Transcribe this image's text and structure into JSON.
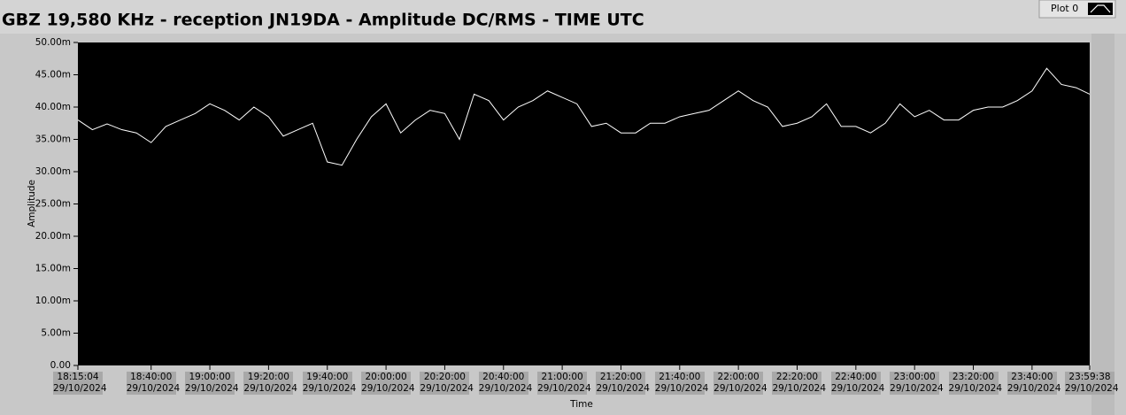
{
  "chart_data": {
    "type": "line",
    "title": "GBZ  19,580 KHz - reception JN19DA -  Amplitude DC/RMS   - TIME UTC",
    "xlabel": "Time",
    "ylabel": "Amplitude",
    "x": [
      "2024-10-29T18:15:04",
      "2024-10-29T18:20:00",
      "2024-10-29T18:25:00",
      "2024-10-29T18:30:00",
      "2024-10-29T18:35:00",
      "2024-10-29T18:40:00",
      "2024-10-29T18:45:00",
      "2024-10-29T18:50:00",
      "2024-10-29T18:55:00",
      "2024-10-29T19:00:00",
      "2024-10-29T19:05:00",
      "2024-10-29T19:10:00",
      "2024-10-29T19:15:00",
      "2024-10-29T19:20:00",
      "2024-10-29T19:25:00",
      "2024-10-29T19:30:00",
      "2024-10-29T19:35:00",
      "2024-10-29T19:40:00",
      "2024-10-29T19:45:00",
      "2024-10-29T19:50:00",
      "2024-10-29T19:55:00",
      "2024-10-29T20:00:00",
      "2024-10-29T20:05:00",
      "2024-10-29T20:10:00",
      "2024-10-29T20:15:00",
      "2024-10-29T20:20:00",
      "2024-10-29T20:25:00",
      "2024-10-29T20:30:00",
      "2024-10-29T20:35:00",
      "2024-10-29T20:40:00",
      "2024-10-29T20:45:00",
      "2024-10-29T20:50:00",
      "2024-10-29T20:55:00",
      "2024-10-29T21:00:00",
      "2024-10-29T21:05:00",
      "2024-10-29T21:10:00",
      "2024-10-29T21:15:00",
      "2024-10-29T21:20:00",
      "2024-10-29T21:25:00",
      "2024-10-29T21:30:00",
      "2024-10-29T21:35:00",
      "2024-10-29T21:40:00",
      "2024-10-29T21:45:00",
      "2024-10-29T21:50:00",
      "2024-10-29T21:55:00",
      "2024-10-29T22:00:00",
      "2024-10-29T22:05:00",
      "2024-10-29T22:10:00",
      "2024-10-29T22:15:00",
      "2024-10-29T22:20:00",
      "2024-10-29T22:25:00",
      "2024-10-29T22:30:00",
      "2024-10-29T22:35:00",
      "2024-10-29T22:40:00",
      "2024-10-29T22:45:00",
      "2024-10-29T22:50:00",
      "2024-10-29T22:55:00",
      "2024-10-29T23:00:00",
      "2024-10-29T23:05:00",
      "2024-10-29T23:10:00",
      "2024-10-29T23:15:00",
      "2024-10-29T23:20:00",
      "2024-10-29T23:25:00",
      "2024-10-29T23:30:00",
      "2024-10-29T23:35:00",
      "2024-10-29T23:40:00",
      "2024-10-29T23:45:00",
      "2024-10-29T23:50:00",
      "2024-10-29T23:55:00",
      "2024-10-29T23:59:38"
    ],
    "series": [
      {
        "name": "Plot 0",
        "color": "#ffffff",
        "values": [
          0.038,
          0.0365,
          0.0374,
          0.0365,
          0.036,
          0.0345,
          0.037,
          0.038,
          0.039,
          0.0405,
          0.0395,
          0.038,
          0.04,
          0.0385,
          0.0355,
          0.0365,
          0.0375,
          0.0315,
          0.031,
          0.035,
          0.0385,
          0.0405,
          0.036,
          0.038,
          0.0395,
          0.039,
          0.035,
          0.042,
          0.041,
          0.038,
          0.04,
          0.041,
          0.0425,
          0.0415,
          0.0405,
          0.037,
          0.0375,
          0.036,
          0.036,
          0.0375,
          0.0375,
          0.0385,
          0.039,
          0.0395,
          0.041,
          0.0425,
          0.041,
          0.04,
          0.037,
          0.0375,
          0.0385,
          0.0405,
          0.037,
          0.037,
          0.036,
          0.0375,
          0.0405,
          0.0385,
          0.0395,
          0.038,
          0.038,
          0.0395,
          0.04,
          0.04,
          0.041,
          0.0425,
          0.046,
          0.0435,
          0.043,
          0.042
        ]
      }
    ],
    "xlim": [
      "2024-10-29T18:15:04",
      "2024-10-29T23:59:38"
    ],
    "ylim": [
      0,
      0.05
    ],
    "yticks": [
      {
        "value": 0,
        "label": "0.00"
      },
      {
        "value": 0.005,
        "label": "5.00m"
      },
      {
        "value": 0.01,
        "label": "10.00m"
      },
      {
        "value": 0.015,
        "label": "15.00m"
      },
      {
        "value": 0.02,
        "label": "20.00m"
      },
      {
        "value": 0.025,
        "label": "25.00m"
      },
      {
        "value": 0.03,
        "label": "30.00m"
      },
      {
        "value": 0.035,
        "label": "35.00m"
      },
      {
        "value": 0.04,
        "label": "40.00m"
      },
      {
        "value": 0.045,
        "label": "45.00m"
      },
      {
        "value": 0.05,
        "label": "50.00m"
      }
    ],
    "xticks": [
      {
        "value": "2024-10-29T18:15:04",
        "label": "18:15:04\n29/10/2024"
      },
      {
        "value": "2024-10-29T18:40:00",
        "label": "18:40:00\n29/10/2024"
      },
      {
        "value": "2024-10-29T19:00:00",
        "label": "19:00:00\n29/10/2024"
      },
      {
        "value": "2024-10-29T19:20:00",
        "label": "19:20:00\n29/10/2024"
      },
      {
        "value": "2024-10-29T19:40:00",
        "label": "19:40:00\n29/10/2024"
      },
      {
        "value": "2024-10-29T20:00:00",
        "label": "20:00:00\n29/10/2024"
      },
      {
        "value": "2024-10-29T20:20:00",
        "label": "20:20:00\n29/10/2024"
      },
      {
        "value": "2024-10-29T20:40:00",
        "label": "20:40:00\n29/10/2024"
      },
      {
        "value": "2024-10-29T21:00:00",
        "label": "21:00:00\n29/10/2024"
      },
      {
        "value": "2024-10-29T21:20:00",
        "label": "21:20:00\n29/10/2024"
      },
      {
        "value": "2024-10-29T21:40:00",
        "label": "21:40:00\n29/10/2024"
      },
      {
        "value": "2024-10-29T22:00:00",
        "label": "22:00:00\n29/10/2024"
      },
      {
        "value": "2024-10-29T22:20:00",
        "label": "22:20:00\n29/10/2024"
      },
      {
        "value": "2024-10-29T22:40:00",
        "label": "22:40:00\n29/10/2024"
      },
      {
        "value": "2024-10-29T23:00:00",
        "label": "23:00:00\n29/10/2024"
      },
      {
        "value": "2024-10-29T23:20:00",
        "label": "23:20:00\n29/10/2024"
      },
      {
        "value": "2024-10-29T23:40:00",
        "label": "23:40:00\n29/10/2024"
      },
      {
        "value": "2024-10-29T23:59:38",
        "label": "23:59:38\n29/10/2024"
      }
    ],
    "grid": false,
    "background": "#000000"
  }
}
